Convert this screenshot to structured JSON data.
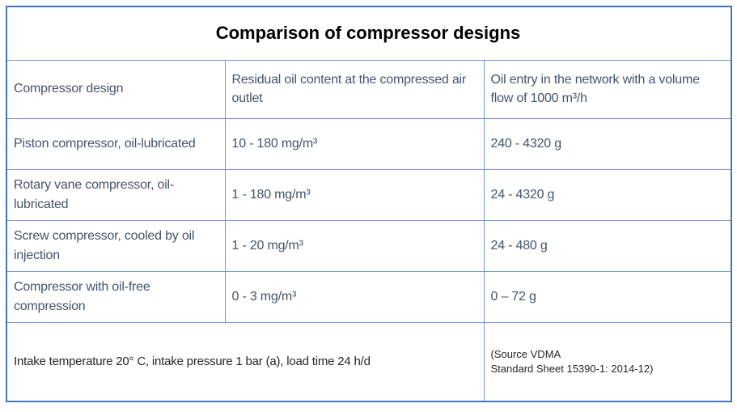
{
  "chart_data": {
    "type": "table",
    "title": "Comparison of compressor designs",
    "columns": [
      "Compressor design",
      "Residual oil content at the compressed air outlet",
      "Oil entry in the network with a volume flow of 1000 m³/h"
    ],
    "rows": [
      [
        "Piston compressor, oil-lubricated",
        "10 - 180 mg/m³",
        "240 - 4320 g"
      ],
      [
        "Rotary vane compressor, oil-lubricated",
        "1 - 180 mg/m³",
        "24 - 4320 g"
      ],
      [
        "Screw compressor, cooled by oil injection",
        "1 - 20 mg/m³",
        "24 - 480 g"
      ],
      [
        "Compressor with oil-free compression",
        "0 - 3 mg/m³",
        "0 – 72 g"
      ]
    ],
    "footnote": "Intake temperature 20° C, intake pressure 1 bar (a), load time 24 h/d",
    "source": "(Source VDMA Standard Sheet 15390-1: 2014-12)",
    "layout": {
      "grid": true,
      "title_position": "top-center"
    }
  },
  "display": {
    "source_line1": "(Source VDMA",
    "source_line2": "Standard Sheet 15390-1: 2014-12)"
  },
  "colors": {
    "border_outer": "#4472C4",
    "border_inner": "#7096D6",
    "body_text": "#44546A",
    "title_text": "#000000",
    "footer_text": "#262626",
    "background": "#FFFFFF"
  }
}
